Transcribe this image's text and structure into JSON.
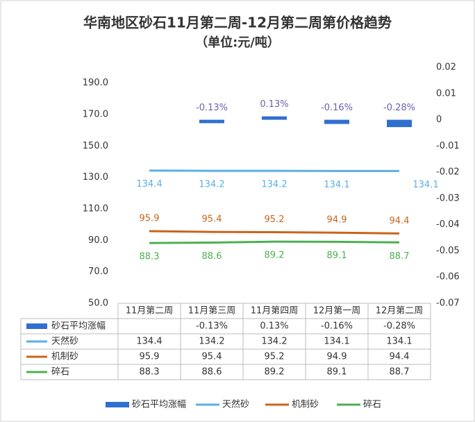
{
  "chart_data": {
    "type": "combo",
    "title": "华南地区砂石11月第二周-12月第二周第价格趋势",
    "subtitle": "（单位:元/吨）",
    "categories": [
      "11月第二周",
      "11月第三周",
      "11月第四周",
      "12月第一周",
      "12月第二周"
    ],
    "series": [
      {
        "name": "砂石平均涨幅",
        "type": "bar",
        "axis": "y2",
        "color": "#2f6fd0",
        "values": [
          null,
          -0.0013,
          0.0013,
          -0.0016,
          -0.0028
        ],
        "value_labels": [
          null,
          "-0.13%",
          "0.13%",
          "-0.16%",
          "-0.28%"
        ]
      },
      {
        "name": "天然砂",
        "type": "line",
        "color": "#5aafe8",
        "values": [
          134.4,
          134.2,
          134.2,
          134.1,
          134.1
        ]
      },
      {
        "name": "机制砂",
        "type": "line",
        "color": "#c8641a",
        "values": [
          95.9,
          95.4,
          95.2,
          94.9,
          94.4
        ]
      },
      {
        "name": "碎石",
        "type": "line",
        "color": "#4caf50",
        "values": [
          88.3,
          88.6,
          89.2,
          89.1,
          88.7
        ]
      }
    ],
    "ylim": [
      50,
      200
    ],
    "yticks": [
      {
        "value": 50,
        "label": "50.0"
      },
      {
        "value": 70,
        "label": "70.0"
      },
      {
        "value": 90,
        "label": "90.0"
      },
      {
        "value": 110,
        "label": "110.0"
      },
      {
        "value": 130,
        "label": "130.0"
      },
      {
        "value": 150,
        "label": "150.0"
      },
      {
        "value": 170,
        "label": "170.0"
      },
      {
        "value": 190,
        "label": "190.0"
      }
    ],
    "y2lim": [
      -0.07,
      0.02
    ],
    "y2ticks": [
      0.02,
      0.01,
      0,
      -0.01,
      -0.02,
      -0.03,
      -0.04,
      -0.05,
      -0.06,
      -0.07
    ],
    "legend": "bottom"
  }
}
